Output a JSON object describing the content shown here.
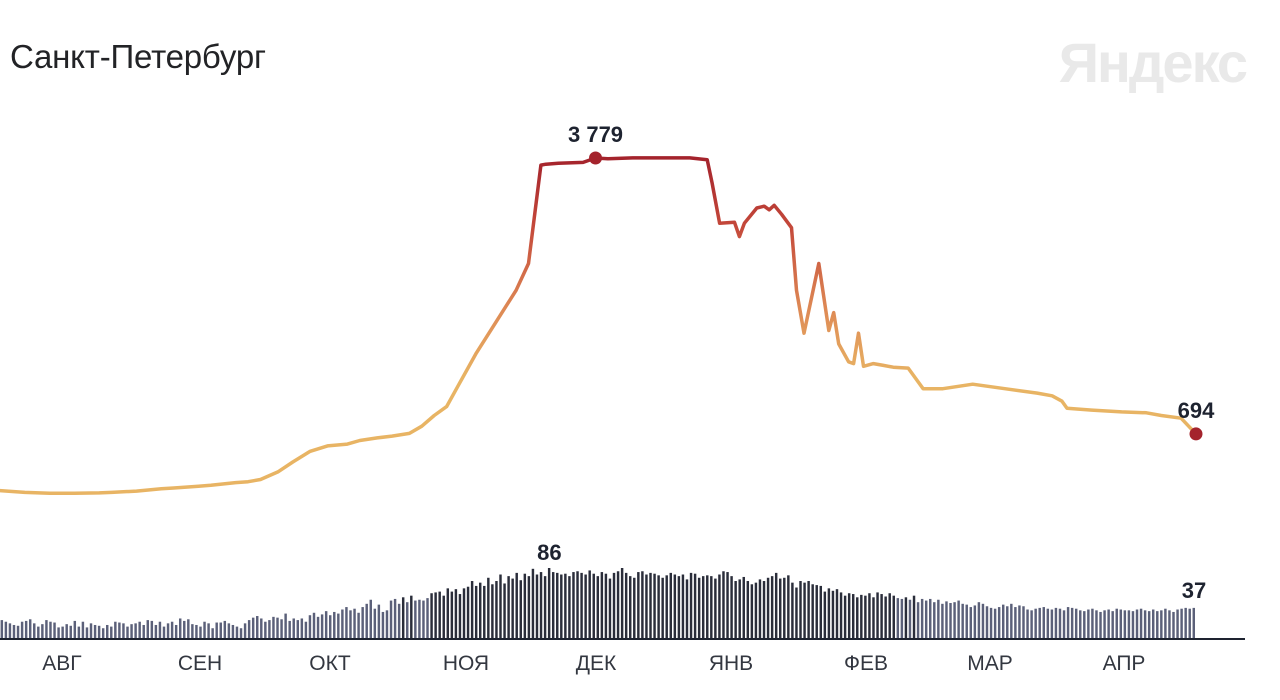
{
  "chart_title": "Санкт-Петербург",
  "brand": "Яндекс",
  "colors": {
    "line_low": "#e8b464",
    "line_high": "#a4232c",
    "bar_color": "#5b6079",
    "bar_dark": "#2a2d3a",
    "axis": "#1e2330",
    "marker": "#a4232c"
  },
  "chart_data": [
    {
      "type": "line",
      "title": "",
      "x_unit": "days",
      "x_start_month": "Jul",
      "months": [
        "АВГ",
        "СЕН",
        "ОКТ",
        "НОЯ",
        "ДЕК",
        "ЯНВ",
        "ФЕВ",
        "МАР",
        "АПР"
      ],
      "points": [
        [
          0,
          60
        ],
        [
          10,
          40
        ],
        [
          20,
          30
        ],
        [
          30,
          30
        ],
        [
          40,
          35
        ],
        [
          45,
          40
        ],
        [
          55,
          55
        ],
        [
          65,
          80
        ],
        [
          70,
          90
        ],
        [
          80,
          110
        ],
        [
          85,
          120
        ],
        [
          95,
          150
        ],
        [
          100,
          160
        ],
        [
          105,
          185
        ],
        [
          112,
          270
        ],
        [
          118,
          380
        ],
        [
          125,
          500
        ],
        [
          132,
          560
        ],
        [
          140,
          580
        ],
        [
          145,
          620
        ],
        [
          152,
          650
        ],
        [
          158,
          670
        ],
        [
          165,
          700
        ],
        [
          170,
          780
        ],
        [
          175,
          900
        ],
        [
          180,
          1000
        ],
        [
          185,
          1250
        ],
        [
          192,
          1600
        ],
        [
          200,
          1950
        ],
        [
          208,
          2300
        ],
        [
          213,
          2600
        ],
        [
          218,
          3700
        ],
        [
          220,
          3710
        ],
        [
          225,
          3720
        ],
        [
          235,
          3730
        ],
        [
          240,
          3779
        ],
        [
          245,
          3770
        ],
        [
          255,
          3780
        ],
        [
          260,
          3780
        ],
        [
          270,
          3780
        ],
        [
          278,
          3780
        ],
        [
          285,
          3760
        ],
        [
          287,
          3500
        ],
        [
          290,
          3050
        ],
        [
          296,
          3060
        ],
        [
          298,
          2900
        ],
        [
          300,
          3050
        ],
        [
          305,
          3220
        ],
        [
          308,
          3240
        ],
        [
          310,
          3200
        ],
        [
          312,
          3250
        ],
        [
          315,
          3150
        ],
        [
          319,
          3000
        ],
        [
          321,
          2300
        ],
        [
          324,
          1820
        ],
        [
          330,
          2600
        ],
        [
          334,
          1850
        ],
        [
          336,
          2050
        ],
        [
          338,
          1700
        ],
        [
          342,
          1500
        ],
        [
          344,
          1480
        ],
        [
          346,
          1820
        ],
        [
          348,
          1450
        ],
        [
          352,
          1480
        ],
        [
          356,
          1460
        ],
        [
          360,
          1440
        ],
        [
          366,
          1430
        ],
        [
          372,
          1200
        ],
        [
          380,
          1200
        ],
        [
          392,
          1250
        ],
        [
          405,
          1200
        ],
        [
          418,
          1150
        ],
        [
          424,
          1120
        ],
        [
          428,
          1060
        ],
        [
          430,
          980
        ],
        [
          440,
          960
        ],
        [
          452,
          940
        ],
        [
          462,
          930
        ],
        [
          468,
          900
        ],
        [
          476,
          870
        ],
        [
          482,
          694
        ]
      ],
      "ylim": [
        0,
        3779
      ],
      "peak": {
        "value": 3779,
        "label": "3 779"
      },
      "end": {
        "value": 694,
        "label": "694"
      }
    },
    {
      "type": "bar",
      "title": "",
      "values": [
        22,
        20,
        18,
        16,
        15,
        20,
        21,
        23,
        18,
        14,
        17,
        22,
        20,
        19,
        13,
        14,
        17,
        15,
        21,
        14,
        20,
        13,
        18,
        16,
        15,
        12,
        16,
        14,
        20,
        19,
        18,
        14,
        17,
        18,
        20,
        16,
        22,
        21,
        16,
        20,
        14,
        18,
        20,
        16,
        24,
        21,
        23,
        17,
        16,
        14,
        20,
        18,
        12,
        19,
        19,
        21,
        18,
        16,
        14,
        12,
        18,
        22,
        25,
        27,
        24,
        20,
        22,
        26,
        25,
        23,
        30,
        21,
        24,
        22,
        24,
        20,
        28,
        31,
        26,
        29,
        33,
        28,
        32,
        30,
        35,
        38,
        34,
        36,
        31,
        38,
        42,
        47,
        36,
        41,
        32,
        34,
        46,
        48,
        42,
        50,
        44,
        52,
        46,
        47,
        46,
        49,
        55,
        56,
        57,
        52,
        61,
        57,
        60,
        54,
        61,
        63,
        70,
        64,
        68,
        64,
        74,
        66,
        70,
        78,
        67,
        76,
        73,
        80,
        71,
        79,
        76,
        85,
        78,
        81,
        76,
        86,
        81,
        80,
        78,
        79,
        76,
        81,
        82,
        80,
        78,
        83,
        79,
        76,
        81,
        79,
        73,
        80,
        82,
        86,
        80,
        76,
        74,
        81,
        82,
        78,
        80,
        79,
        77,
        74,
        77,
        80,
        78,
        76,
        78,
        72,
        80,
        79,
        74,
        76,
        77,
        76,
        73,
        78,
        82,
        81,
        76,
        70,
        72,
        75,
        70,
        66,
        68,
        72,
        70,
        74,
        76,
        80,
        73,
        74,
        77,
        68,
        62,
        70,
        68,
        70,
        66,
        65,
        64,
        57,
        61,
        58,
        60,
        56,
        52,
        55,
        54,
        50,
        53,
        52,
        55,
        50,
        56,
        54,
        51,
        55,
        52,
        49,
        48,
        50,
        47,
        52,
        44,
        48,
        46,
        48,
        44,
        47,
        42,
        45,
        43,
        44,
        46,
        42,
        41,
        38,
        40,
        44,
        42,
        39,
        37,
        36,
        38,
        41,
        39,
        42,
        38,
        40,
        39,
        35,
        34,
        36,
        37,
        38,
        36,
        35,
        37,
        36,
        34,
        38,
        37,
        36,
        34,
        33,
        35,
        36,
        34,
        32,
        34,
        35,
        33,
        36,
        35,
        34,
        34,
        33,
        35,
        36,
        34,
        33,
        35,
        33,
        34,
        36,
        34,
        32,
        35,
        36,
        37,
        36,
        37
      ],
      "max_label": "86",
      "end_label": "37",
      "ylim": [
        0,
        86
      ]
    }
  ]
}
